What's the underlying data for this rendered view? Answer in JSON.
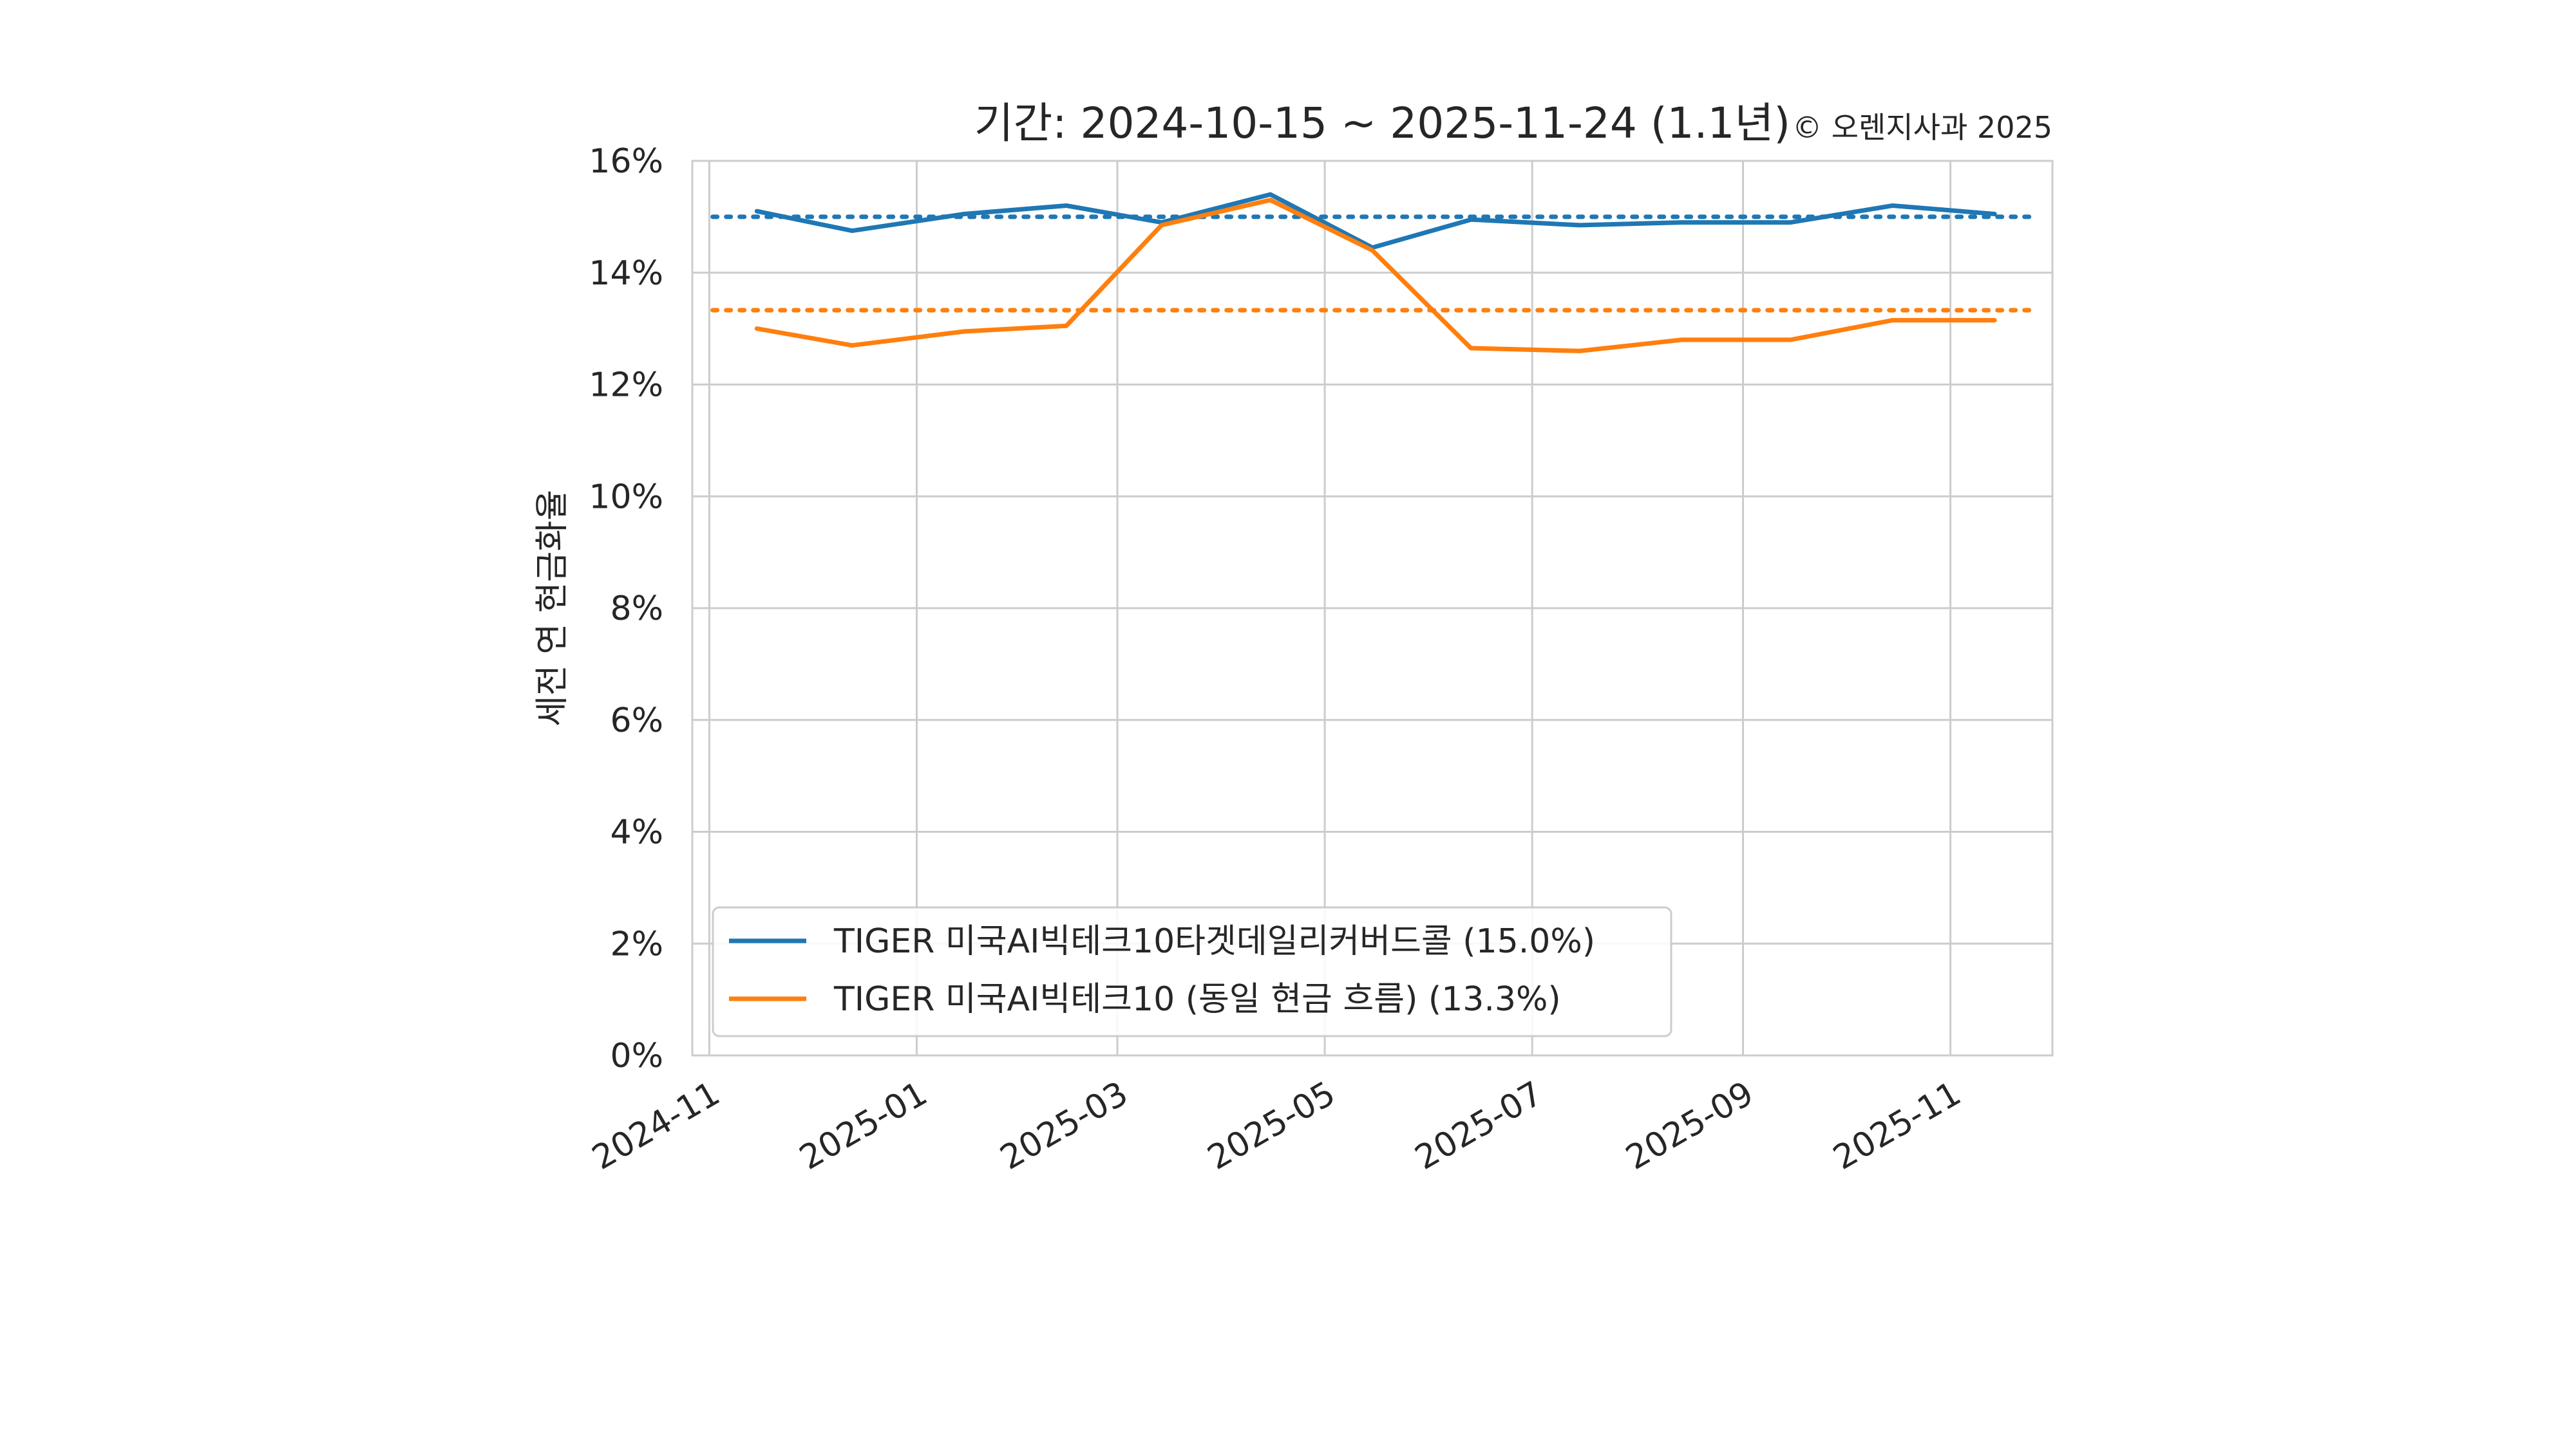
{
  "chart_data": {
    "type": "line",
    "title": "기간: 2024-10-15 ~ 2025-11-24 (1.1년)",
    "copyright": "© 오렌지사과 2025",
    "xlabel": "",
    "ylabel": "세전 연 현금화율",
    "x_tick_labels": [
      "2024-11",
      "2025-01",
      "2025-03",
      "2025-05",
      "2025-07",
      "2025-09",
      "2025-11"
    ],
    "y_tick_labels": [
      "0%",
      "2%",
      "4%",
      "6%",
      "8%",
      "10%",
      "12%",
      "14%",
      "16%"
    ],
    "ylim": [
      0,
      16
    ],
    "xlim": [
      "2024-10-27",
      "2025-12-01"
    ],
    "grid": true,
    "legend_position": "lower-left",
    "x": [
      "2024-11-15",
      "2024-12-13",
      "2025-01-15",
      "2025-02-14",
      "2025-03-14",
      "2025-04-15",
      "2025-05-15",
      "2025-06-13",
      "2025-07-15",
      "2025-08-14",
      "2025-09-15",
      "2025-10-15",
      "2025-11-14"
    ],
    "series": [
      {
        "name": "TIGER 미국AI빅테크10타겟데일리커버드콜 (15.0%)",
        "color": "#1f77b4",
        "values": [
          15.1,
          14.75,
          15.05,
          15.2,
          14.9,
          15.4,
          14.45,
          14.95,
          14.85,
          14.9,
          14.9,
          15.2,
          15.05
        ],
        "mean": 15.0
      },
      {
        "name": "TIGER 미국AI빅테크10 (동일 현금 흐름) (13.3%)",
        "color": "#ff7f0e",
        "values": [
          13.0,
          12.7,
          12.95,
          13.05,
          14.85,
          15.3,
          14.4,
          12.65,
          12.6,
          12.8,
          12.8,
          13.15,
          13.15
        ],
        "mean": 13.33
      }
    ]
  }
}
